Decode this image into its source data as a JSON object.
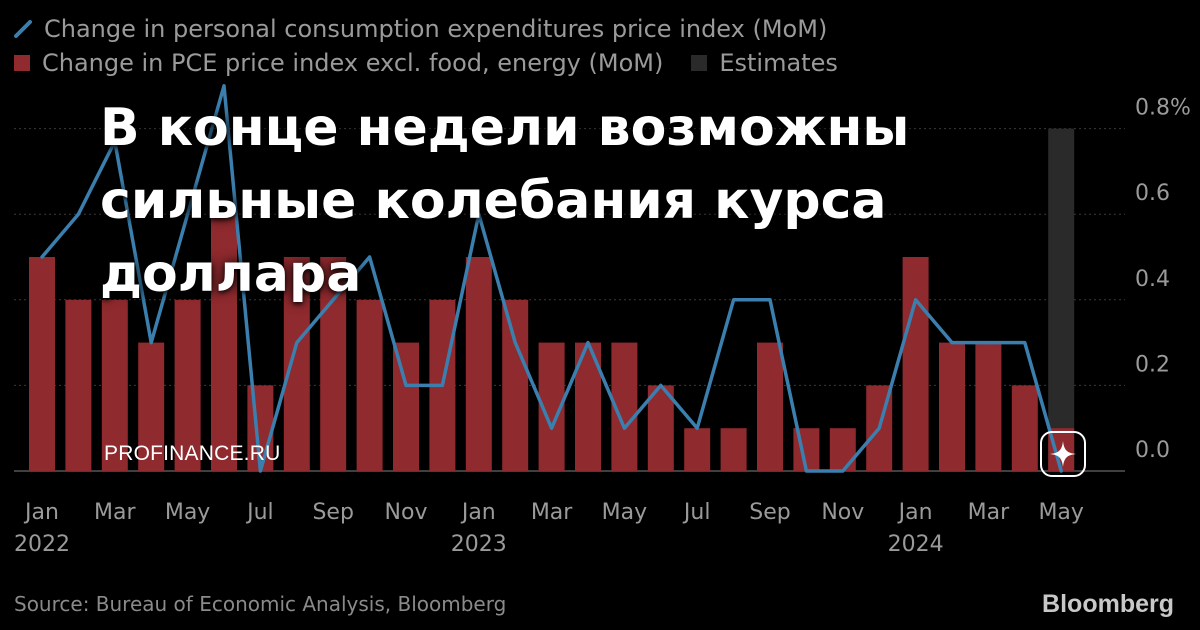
{
  "headline": "В конце недели возможны сильные колебания курса доллара",
  "watermark": "PROFINANCE.RU",
  "source": "Source: Bureau of Economic Analysis, Bloomberg",
  "brand": "Bloomberg",
  "badge_icon": "sparkle-icon",
  "legend": {
    "line_label": "Change in personal consumption expenditures price index (MoM)",
    "bar_label": "Change in PCE price index excl. food, energy (MoM)",
    "estimate_label": "Estimates"
  },
  "colors": {
    "line": "#3a7fae",
    "bar": "#8f2a2e",
    "estimate": "#2a2a2a",
    "grid": "#3a3a3a",
    "text": "#9a9a9a"
  },
  "chart_data": {
    "type": "bar",
    "title": "",
    "xlabel": "",
    "ylabel": "",
    "ylim": [
      0,
      0.8
    ],
    "yticks": [
      0.0,
      0.2,
      0.4,
      0.6,
      0.8
    ],
    "ytick_labels": [
      "0.0",
      "0.2",
      "0.4",
      "0.6",
      "0.8%"
    ],
    "grid": true,
    "legend_position": "top-left",
    "categories": [
      "2022-01",
      "2022-02",
      "2022-03",
      "2022-04",
      "2022-05",
      "2022-06",
      "2022-07",
      "2022-08",
      "2022-09",
      "2022-10",
      "2022-11",
      "2022-12",
      "2023-01",
      "2023-02",
      "2023-03",
      "2023-04",
      "2023-05",
      "2023-06",
      "2023-07",
      "2023-08",
      "2023-09",
      "2023-10",
      "2023-11",
      "2023-12",
      "2024-01",
      "2024-02",
      "2024-03",
      "2024-04",
      "2024-05"
    ],
    "x_tick_labels": [
      {
        "index": 0,
        "month": "Jan",
        "year": "2022"
      },
      {
        "index": 2,
        "month": "Mar",
        "year": ""
      },
      {
        "index": 4,
        "month": "May",
        "year": ""
      },
      {
        "index": 6,
        "month": "Jul",
        "year": ""
      },
      {
        "index": 8,
        "month": "Sep",
        "year": ""
      },
      {
        "index": 10,
        "month": "Nov",
        "year": ""
      },
      {
        "index": 12,
        "month": "Jan",
        "year": "2023"
      },
      {
        "index": 14,
        "month": "Mar",
        "year": ""
      },
      {
        "index": 16,
        "month": "May",
        "year": ""
      },
      {
        "index": 18,
        "month": "Jul",
        "year": ""
      },
      {
        "index": 20,
        "month": "Sep",
        "year": ""
      },
      {
        "index": 22,
        "month": "Nov",
        "year": ""
      },
      {
        "index": 24,
        "month": "Jan",
        "year": "2024"
      },
      {
        "index": 26,
        "month": "Mar",
        "year": ""
      },
      {
        "index": 28,
        "month": "May",
        "year": ""
      }
    ],
    "series": [
      {
        "name": "Change in PCE price index excl. food, energy (MoM)",
        "type": "bar",
        "values": [
          0.5,
          0.4,
          0.4,
          0.3,
          0.4,
          0.6,
          0.2,
          0.5,
          0.5,
          0.4,
          0.3,
          0.4,
          0.5,
          0.4,
          0.3,
          0.3,
          0.3,
          0.2,
          0.1,
          0.1,
          0.3,
          0.1,
          0.1,
          0.2,
          0.5,
          0.3,
          0.3,
          0.2,
          0.1
        ]
      },
      {
        "name": "Change in personal consumption expenditures price index (MoM)",
        "type": "line",
        "values": [
          0.5,
          0.6,
          0.77,
          0.3,
          0.6,
          0.9,
          0.0,
          0.3,
          0.4,
          0.5,
          0.2,
          0.2,
          0.6,
          0.3,
          0.1,
          0.3,
          0.1,
          0.2,
          0.1,
          0.4,
          0.4,
          0.0,
          0.0,
          0.1,
          0.4,
          0.3,
          0.3,
          0.3,
          0.0
        ]
      }
    ],
    "estimate_index": 28
  }
}
